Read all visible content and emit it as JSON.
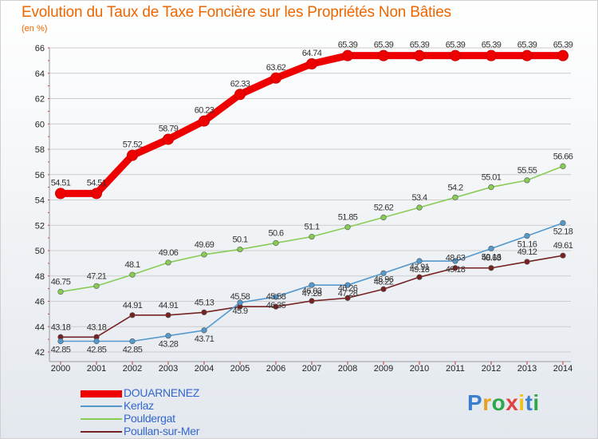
{
  "title": "Evolution du Taux de Taxe Foncière sur les Propriétés Non Bâties",
  "unit_label": "(en %)",
  "logo": {
    "text": "Proxiti",
    "colors": [
      "#3a7fd0",
      "#e8a020",
      "#2ea84a",
      "#e04040",
      "#f0c020",
      "#3a7fd0",
      "#2ea84a"
    ]
  },
  "chart_data": {
    "type": "line",
    "title": "Evolution du Taux de Taxe Foncière sur les Propriétés Non Bâties",
    "ylabel": "(en %)",
    "xlabel": "",
    "x": [
      "2000",
      "2001",
      "2002",
      "2003",
      "2004",
      "2005",
      "2006",
      "2007",
      "2008",
      "2009",
      "2010",
      "2011",
      "2012",
      "2013",
      "2014"
    ],
    "ylim": [
      42,
      66
    ],
    "yticks": [
      42,
      44,
      46,
      48,
      50,
      52,
      54,
      56,
      58,
      60,
      62,
      64,
      66
    ],
    "grid": "horizontal",
    "legend_position": "bottom-left",
    "series": [
      {
        "name": "DOUARNENEZ",
        "color": "#ee0000",
        "values": [
          54.51,
          54.51,
          57.52,
          58.79,
          60.23,
          62.33,
          63.62,
          64.74,
          65.39,
          65.39,
          65.39,
          65.39,
          65.39,
          65.39,
          65.39
        ],
        "labels": [
          "54.51",
          "54.51",
          "57.52",
          "58.79",
          "60.23",
          "62.33",
          "63.62",
          "64.74",
          "65.39",
          "65.39",
          "65.39",
          "65.39",
          "65.39",
          "65.39",
          "65.39"
        ]
      },
      {
        "name": "Kerlaz",
        "color": "#5599cc",
        "values": [
          42.85,
          42.85,
          42.85,
          43.28,
          43.71,
          45.9,
          46.35,
          47.28,
          47.28,
          48.22,
          49.18,
          49.18,
          50.16,
          51.16,
          52.18
        ],
        "labels": [
          "42.85",
          "42.85",
          "42.85",
          "43.28",
          "43.71",
          "45.9",
          "46.35",
          "47.28",
          "47.28",
          "48.22",
          "49.18",
          "49.18",
          "50.16",
          "51.16",
          "52.18"
        ]
      },
      {
        "name": "Pouldergat",
        "color": "#88cc55",
        "values": [
          46.75,
          47.21,
          48.1,
          49.06,
          49.69,
          50.1,
          50.6,
          51.1,
          51.85,
          52.62,
          53.4,
          54.2,
          55.01,
          55.55,
          56.66
        ],
        "labels": [
          "46.75",
          "47.21",
          "48.1",
          "49.06",
          "49.69",
          "50.1",
          "50.6",
          "51.1",
          "51.85",
          "52.62",
          "53.4",
          "54.2",
          "55.01",
          "55.55",
          "56.66"
        ]
      },
      {
        "name": "Poullan-sur-Mer",
        "color": "#772222",
        "values": [
          43.18,
          43.18,
          44.91,
          44.91,
          45.13,
          45.58,
          45.58,
          46.03,
          46.26,
          46.96,
          47.91,
          48.63,
          48.63,
          49.12,
          49.61
        ],
        "labels": [
          "43.18",
          "43.18",
          "44.91",
          "44.91",
          "45.13",
          "45.58",
          "45.58",
          "46.03",
          "46.26",
          "46.96",
          "47.91",
          "48.63",
          "48.63",
          "49.12",
          "49.61"
        ]
      }
    ]
  }
}
